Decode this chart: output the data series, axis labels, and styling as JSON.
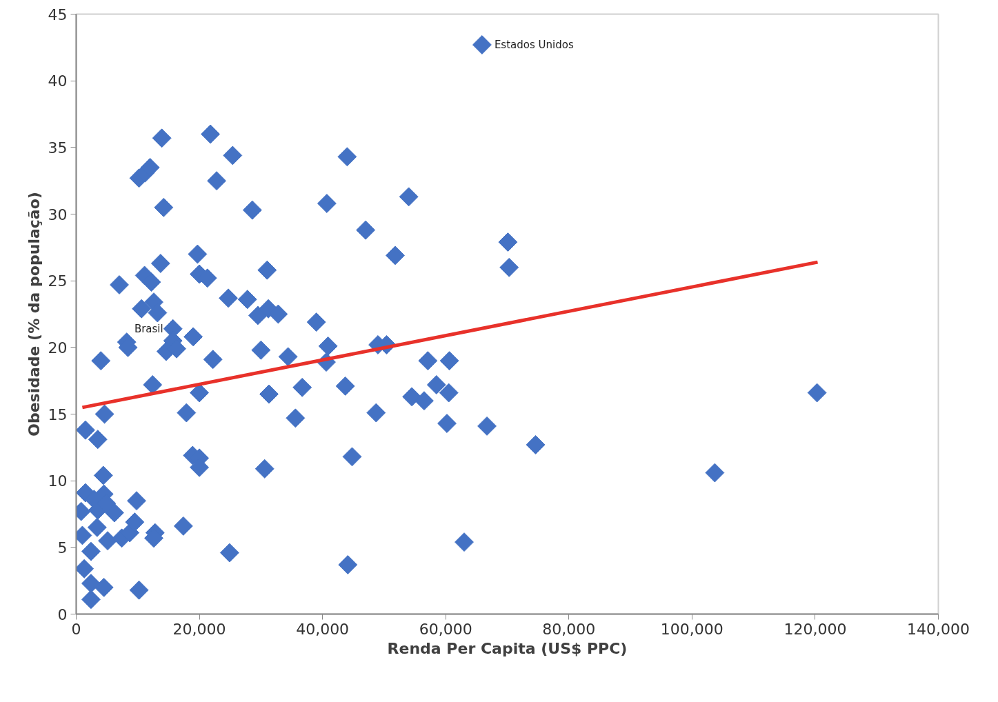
{
  "chart_data": {
    "type": "scatter",
    "xlabel": "Renda Per Capita (US$ PPC)",
    "ylabel": "Obesidade (% da população)",
    "xlim": [
      0,
      140000
    ],
    "ylim": [
      0,
      45
    ],
    "xticks": [
      0,
      {
        "value": 20000,
        "label": "20,000"
      },
      {
        "value": 40000,
        "label": "40,000"
      },
      {
        "value": 60000,
        "label": "60,000"
      },
      {
        "value": 80000,
        "label": "80,000"
      },
      {
        "value": 100000,
        "label": "100,000"
      },
      {
        "value": 120000,
        "label": "120,000"
      },
      {
        "value": 140000,
        "label": "140,000"
      }
    ],
    "yticks": [
      0,
      5,
      10,
      15,
      20,
      25,
      30,
      35,
      40,
      45
    ],
    "grid": false,
    "series": [
      {
        "marker": "diamond",
        "color": "#4472c4",
        "x": [
          13900,
          21800,
          25400,
          10200,
          11200,
          12000,
          22800,
          14200,
          28600,
          44000,
          40700,
          54000,
          47000,
          51800,
          70100,
          70300,
          13700,
          19700,
          7000,
          11100,
          12200,
          20000,
          21300,
          24700,
          27800,
          31000,
          10600,
          12600,
          13200,
          29500,
          31200,
          32800,
          15700,
          15700,
          14600,
          16300,
          19000,
          8200,
          8400,
          4000,
          22200,
          30000,
          34400,
          39000,
          40900,
          40600,
          49000,
          50400,
          57100,
          60600,
          31300,
          36700,
          43700,
          54500,
          56500,
          58500,
          60500,
          35600,
          48700,
          60200,
          66700,
          74600,
          30600,
          44800,
          24900,
          44100,
          63000,
          103700,
          120300,
          12400,
          20000,
          4600,
          17900,
          1500,
          3500,
          18900,
          20000,
          20000,
          4400,
          1500,
          4500,
          2900,
          800,
          3500,
          6200,
          9800,
          4900,
          3400,
          1000,
          5100,
          7400,
          8700,
          9500,
          12800,
          12600,
          17400,
          2400,
          1300,
          2400,
          4500,
          2400,
          10200,
          65900
        ],
        "values": [
          35.7,
          36.0,
          34.4,
          32.7,
          33.1,
          33.5,
          32.5,
          30.5,
          30.3,
          34.3,
          30.8,
          31.3,
          28.8,
          26.9,
          27.9,
          26.0,
          26.3,
          27.0,
          24.7,
          25.4,
          24.9,
          25.5,
          25.2,
          23.7,
          23.6,
          25.8,
          22.9,
          23.4,
          22.6,
          22.4,
          22.9,
          22.5,
          21.4,
          20.5,
          19.7,
          19.9,
          20.8,
          20.4,
          20.0,
          19.0,
          19.1,
          19.8,
          19.3,
          21.9,
          20.1,
          18.9,
          20.2,
          20.2,
          19.0,
          19.0,
          16.5,
          17.0,
          17.1,
          16.3,
          16.0,
          17.2,
          16.6,
          14.7,
          15.1,
          14.3,
          14.1,
          12.7,
          10.9,
          11.8,
          4.6,
          3.7,
          5.4,
          10.6,
          16.6,
          17.2,
          16.6,
          15.0,
          15.1,
          13.8,
          13.1,
          11.9,
          11.7,
          11.0,
          10.4,
          9.1,
          9.0,
          8.6,
          7.7,
          7.8,
          7.6,
          8.5,
          8.3,
          6.5,
          5.9,
          5.5,
          5.7,
          6.1,
          6.9,
          6.1,
          5.7,
          6.6,
          4.7,
          3.4,
          2.3,
          2.0,
          1.1,
          1.8,
          42.7
        ]
      },
      {
        "type": "line",
        "color": "#e8312a",
        "x": [
          1000,
          120400
        ],
        "values": [
          15.5,
          26.4
        ]
      }
    ],
    "annotations": [
      {
        "text": "Brasil",
        "x": 15700,
        "y": 21.4
      },
      {
        "text": "Estados Unidos",
        "x": 65900,
        "y": 42.7
      }
    ]
  }
}
